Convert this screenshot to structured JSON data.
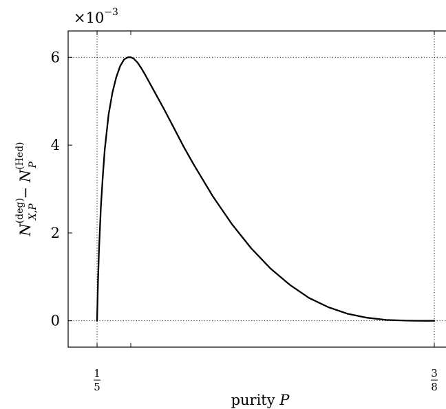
{
  "chart_data": {
    "type": "line",
    "title": "",
    "xlabel": {
      "text": "purity ",
      "var": "P"
    },
    "ylabel": {
      "part1_base": "N",
      "part1_sup": "(deg)",
      "part1_sub": "X,P",
      "minus": " − ",
      "part2_base": "N",
      "part2_sup": "(Hed)",
      "part2_sub": "P"
    },
    "y_scale_label": {
      "base": "×10",
      "exponent": "−3"
    },
    "xlim": [
      0.185,
      0.385
    ],
    "ylim": [
      -0.6,
      6.6
    ],
    "x_ticks": [
      {
        "value": 0.2,
        "num": "1",
        "den": "5"
      },
      {
        "value": 0.375,
        "num": "3",
        "den": "8"
      }
    ],
    "x_minor_ticks": [
      0.2175
    ],
    "y_ticks": [
      {
        "value": 0,
        "label": "0"
      },
      {
        "value": 2,
        "label": "2"
      },
      {
        "value": 4,
        "label": "4"
      },
      {
        "value": 6,
        "label": "6"
      }
    ],
    "grid_x": [
      0.2,
      0.375
    ],
    "grid_y": [
      0,
      6
    ],
    "grid_style": "dotted",
    "series": [
      {
        "color": "#000000",
        "x": [
          0.2,
          0.2005,
          0.201,
          0.202,
          0.203,
          0.204,
          0.206,
          0.208,
          0.21,
          0.212,
          0.214,
          0.216,
          0.2175,
          0.219,
          0.221,
          0.223,
          0.225,
          0.23,
          0.235,
          0.24,
          0.245,
          0.25,
          0.26,
          0.27,
          0.28,
          0.29,
          0.3,
          0.31,
          0.32,
          0.33,
          0.34,
          0.35,
          0.36,
          0.365,
          0.37,
          0.375
        ],
        "y": [
          0.0,
          0.9,
          1.6,
          2.6,
          3.3,
          3.9,
          4.7,
          5.2,
          5.55,
          5.8,
          5.95,
          6.0,
          6.0,
          5.97,
          5.88,
          5.75,
          5.6,
          5.2,
          4.8,
          4.38,
          3.96,
          3.57,
          2.84,
          2.2,
          1.65,
          1.19,
          0.82,
          0.52,
          0.31,
          0.16,
          0.07,
          0.02,
          0.004,
          0.001,
          0.0,
          0.0
        ]
      }
    ]
  }
}
